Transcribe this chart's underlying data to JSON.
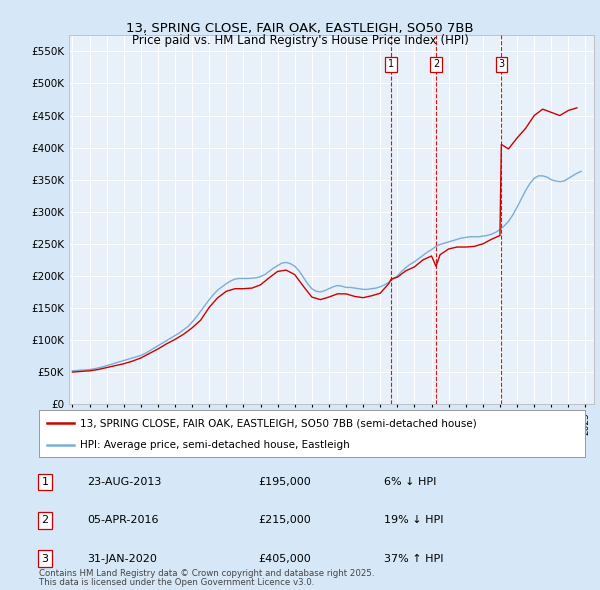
{
  "title_line1": "13, SPRING CLOSE, FAIR OAK, EASTLEIGH, SO50 7BB",
  "title_line2": "Price paid vs. HM Land Registry's House Price Index (HPI)",
  "ylim": [
    0,
    575000
  ],
  "yticks": [
    0,
    50000,
    100000,
    150000,
    200000,
    250000,
    300000,
    350000,
    400000,
    450000,
    500000,
    550000
  ],
  "ytick_labels": [
    "£0",
    "£50K",
    "£100K",
    "£150K",
    "£200K",
    "£250K",
    "£300K",
    "£350K",
    "£400K",
    "£450K",
    "£500K",
    "£550K"
  ],
  "xlim_start": 1994.8,
  "xlim_end": 2025.5,
  "background_color": "#d6e8f7",
  "plot_bg_color": "#e8f1fa",
  "grid_color": "#ffffff",
  "red_line_color": "#cc0000",
  "blue_line_color": "#7aaed6",
  "sale_dates": [
    2013.64,
    2016.26,
    2020.08
  ],
  "sale_labels": [
    "1",
    "2",
    "3"
  ],
  "sale_prices": [
    195000,
    215000,
    405000
  ],
  "sale_date_strs": [
    "23-AUG-2013",
    "05-APR-2016",
    "31-JAN-2020"
  ],
  "sale_hpi_pcts": [
    "6% ↓ HPI",
    "19% ↓ HPI",
    "37% ↑ HPI"
  ],
  "legend_label_red": "13, SPRING CLOSE, FAIR OAK, EASTLEIGH, SO50 7BB (semi-detached house)",
  "legend_label_blue": "HPI: Average price, semi-detached house, Eastleigh",
  "footer_line1": "Contains HM Land Registry data © Crown copyright and database right 2025.",
  "footer_line2": "This data is licensed under the Open Government Licence v3.0.",
  "hpi_years": [
    1995.0,
    1995.25,
    1995.5,
    1995.75,
    1996.0,
    1996.25,
    1996.5,
    1996.75,
    1997.0,
    1997.25,
    1997.5,
    1997.75,
    1998.0,
    1998.25,
    1998.5,
    1998.75,
    1999.0,
    1999.25,
    1999.5,
    1999.75,
    2000.0,
    2000.25,
    2000.5,
    2000.75,
    2001.0,
    2001.25,
    2001.5,
    2001.75,
    2002.0,
    2002.25,
    2002.5,
    2002.75,
    2003.0,
    2003.25,
    2003.5,
    2003.75,
    2004.0,
    2004.25,
    2004.5,
    2004.75,
    2005.0,
    2005.25,
    2005.5,
    2005.75,
    2006.0,
    2006.25,
    2006.5,
    2006.75,
    2007.0,
    2007.25,
    2007.5,
    2007.75,
    2008.0,
    2008.25,
    2008.5,
    2008.75,
    2009.0,
    2009.25,
    2009.5,
    2009.75,
    2010.0,
    2010.25,
    2010.5,
    2010.75,
    2011.0,
    2011.25,
    2011.5,
    2011.75,
    2012.0,
    2012.25,
    2012.5,
    2012.75,
    2013.0,
    2013.25,
    2013.5,
    2013.75,
    2014.0,
    2014.25,
    2014.5,
    2014.75,
    2015.0,
    2015.25,
    2015.5,
    2015.75,
    2016.0,
    2016.25,
    2016.5,
    2016.75,
    2017.0,
    2017.25,
    2017.5,
    2017.75,
    2018.0,
    2018.25,
    2018.5,
    2018.75,
    2019.0,
    2019.25,
    2019.5,
    2019.75,
    2020.0,
    2020.25,
    2020.5,
    2020.75,
    2021.0,
    2021.25,
    2021.5,
    2021.75,
    2022.0,
    2022.25,
    2022.5,
    2022.75,
    2023.0,
    2023.25,
    2023.5,
    2023.75,
    2024.0,
    2024.25,
    2024.5,
    2024.75
  ],
  "hpi_values": [
    52000,
    52500,
    53000,
    53500,
    54000,
    55000,
    56500,
    58000,
    60000,
    62000,
    64000,
    66000,
    68000,
    70000,
    72000,
    74000,
    76000,
    79000,
    83000,
    87000,
    91000,
    95000,
    99000,
    103000,
    107000,
    111000,
    116000,
    121000,
    128000,
    136000,
    145000,
    154000,
    163000,
    171000,
    178000,
    183000,
    188000,
    192000,
    195000,
    196000,
    196000,
    196000,
    196500,
    197000,
    199000,
    202000,
    207000,
    212000,
    216000,
    220000,
    221000,
    219000,
    215000,
    208000,
    198000,
    188000,
    180000,
    176000,
    175000,
    177000,
    180000,
    183000,
    185000,
    184000,
    182000,
    182000,
    181000,
    180000,
    179000,
    179000,
    180000,
    181000,
    183000,
    186000,
    190000,
    195000,
    200000,
    207000,
    213000,
    218000,
    222000,
    227000,
    232000,
    237000,
    241000,
    246000,
    249000,
    251000,
    253000,
    255000,
    257000,
    259000,
    260000,
    261000,
    261000,
    261000,
    262000,
    263000,
    265000,
    268000,
    272000,
    278000,
    285000,
    295000,
    307000,
    320000,
    333000,
    344000,
    352000,
    356000,
    356000,
    354000,
    350000,
    348000,
    347000,
    348000,
    352000,
    356000,
    360000,
    363000
  ],
  "red_years": [
    1995.0,
    1995.5,
    1996.0,
    1996.5,
    1997.0,
    1997.5,
    1998.0,
    1998.5,
    1999.0,
    1999.5,
    2000.0,
    2000.5,
    2001.0,
    2001.5,
    2002.0,
    2002.5,
    2003.0,
    2003.5,
    2004.0,
    2004.5,
    2005.0,
    2005.5,
    2006.0,
    2006.5,
    2007.0,
    2007.5,
    2008.0,
    2008.5,
    2009.0,
    2009.5,
    2010.0,
    2010.5,
    2011.0,
    2011.5,
    2012.0,
    2012.5,
    2013.0,
    2013.5,
    2013.64,
    2014.0,
    2014.5,
    2015.0,
    2015.5,
    2016.0,
    2016.26,
    2016.5,
    2017.0,
    2017.5,
    2018.0,
    2018.5,
    2019.0,
    2019.5,
    2020.0,
    2020.08,
    2020.5,
    2021.0,
    2021.5,
    2022.0,
    2022.5,
    2023.0,
    2023.5,
    2024.0,
    2024.5
  ],
  "red_values": [
    50000,
    51000,
    52000,
    54000,
    57000,
    60000,
    63000,
    67000,
    72000,
    79000,
    86000,
    94000,
    101000,
    109000,
    119000,
    131000,
    151000,
    166000,
    176000,
    180000,
    180000,
    181000,
    186000,
    197000,
    207000,
    209000,
    202000,
    184000,
    167000,
    163000,
    167000,
    172000,
    172000,
    168000,
    166000,
    169000,
    173000,
    188000,
    195000,
    198000,
    208000,
    214000,
    225000,
    231000,
    215000,
    233000,
    242000,
    245000,
    245000,
    246000,
    250000,
    257000,
    263000,
    405000,
    398000,
    415000,
    430000,
    450000,
    460000,
    455000,
    450000,
    458000,
    462000
  ]
}
